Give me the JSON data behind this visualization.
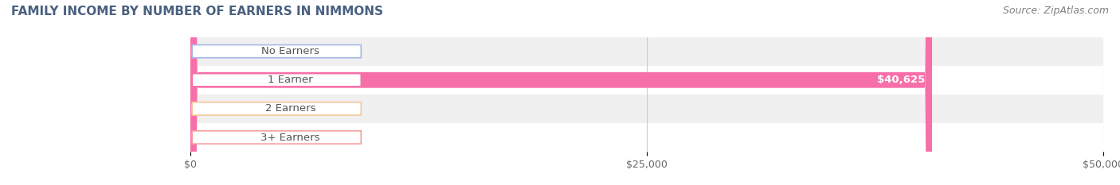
{
  "title": "FAMILY INCOME BY NUMBER OF EARNERS IN NIMMONS",
  "source": "Source: ZipAtlas.com",
  "categories": [
    "No Earners",
    "1 Earner",
    "2 Earners",
    "3+ Earners"
  ],
  "values": [
    0,
    40625,
    0,
    0
  ],
  "bar_colors": [
    "#a8b8e8",
    "#f76fa8",
    "#f5c89a",
    "#f5a0a0"
  ],
  "xlim": [
    0,
    50000
  ],
  "xticks": [
    0,
    25000,
    50000
  ],
  "xticklabels": [
    "$0",
    "$25,000",
    "$50,000"
  ],
  "bar_height": 0.55,
  "title_color": "#4a6080",
  "source_color": "#808080",
  "value_label_color_inside": "#ffffff",
  "title_fontsize": 11,
  "source_fontsize": 9,
  "tick_fontsize": 9,
  "label_fontsize": 9.5,
  "row_colors": [
    "#f0f0f0",
    "#ffffff",
    "#f0f0f0",
    "#ffffff"
  ]
}
